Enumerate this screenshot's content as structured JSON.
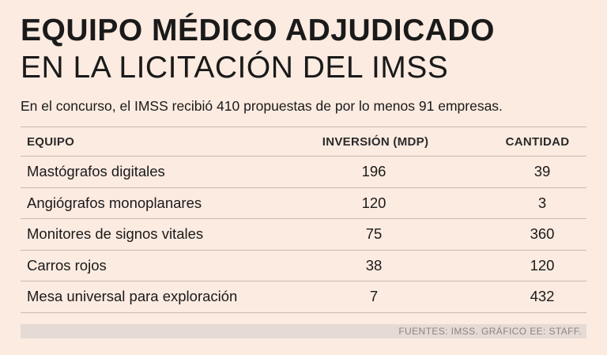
{
  "title_line1": "EQUIPO MÉDICO ADJUDICADO",
  "title_line2": "EN LA LICITACIÓN DEL IMSS",
  "subtitle": "En el concurso, el IMSS recibió 410 propuestas de por lo menos 91 empresas.",
  "source": "FUENTES: IMSS. GRÁFICO EE: STAFF.",
  "chart_data": {
    "type": "table",
    "title": "EQUIPO MÉDICO ADJUDICADO EN LA LICITACIÓN DEL IMSS",
    "columns": [
      "EQUIPO",
      "INVERSIÓN (MDP)",
      "CANTIDAD"
    ],
    "rows": [
      {
        "equipo": "Mastógrafos digitales",
        "inversion": "196",
        "cantidad": "39"
      },
      {
        "equipo": "Angiógrafos monoplanares",
        "inversion": "120",
        "cantidad": "3"
      },
      {
        "equipo": "Monitores de signos vitales",
        "inversion": "75",
        "cantidad": "360"
      },
      {
        "equipo": "Carros rojos",
        "inversion": "38",
        "cantidad": "120"
      },
      {
        "equipo": "Mesa universal para exploración",
        "inversion": "7",
        "cantidad": "432"
      }
    ]
  }
}
